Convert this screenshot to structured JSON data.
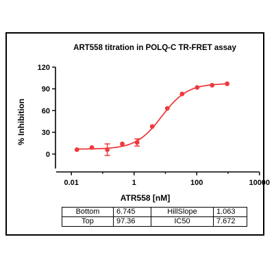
{
  "chart_data": {
    "type": "scatter",
    "title": "ART558 titration in POLQ-C TR-FRET assay",
    "xlabel": "ATR558 [nM]",
    "ylabel": "% Inhibition",
    "xscale": "log",
    "xlim": [
      0.004,
      1000
    ],
    "ylim": [
      -20,
      120
    ],
    "xticks": [
      0.01,
      1,
      100,
      10000
    ],
    "xtick_labels": [
      "0.01",
      "1",
      "100",
      "10000"
    ],
    "yticks": [
      0,
      30,
      60,
      90,
      120
    ],
    "ytick_labels": [
      "0",
      "30",
      "60",
      "90",
      "120"
    ],
    "grid": false,
    "color": "#f0393c",
    "series": [
      {
        "x": [
          0.015,
          0.045,
          0.14,
          0.42,
          1.25,
          3.8,
          11.5,
          34,
          103,
          310,
          930
        ],
        "y": [
          6,
          9,
          6,
          14,
          16,
          38,
          63,
          83,
          92,
          95,
          97
        ],
        "yerr": [
          0,
          0,
          8,
          0,
          5,
          0,
          0,
          0,
          0,
          0,
          0
        ]
      }
    ],
    "fit": {
      "bottom": 6.745,
      "top": 97.36,
      "ic50": 7.672,
      "hillslope": 1.063
    }
  },
  "params_table": {
    "rows": [
      {
        "label1": "Bottom",
        "value1": "6.745",
        "label2": "HillSlope",
        "value2": "1.063"
      },
      {
        "label1": "Top",
        "value1": "97.36",
        "label2": "IC50",
        "value2": "7.672"
      }
    ]
  }
}
